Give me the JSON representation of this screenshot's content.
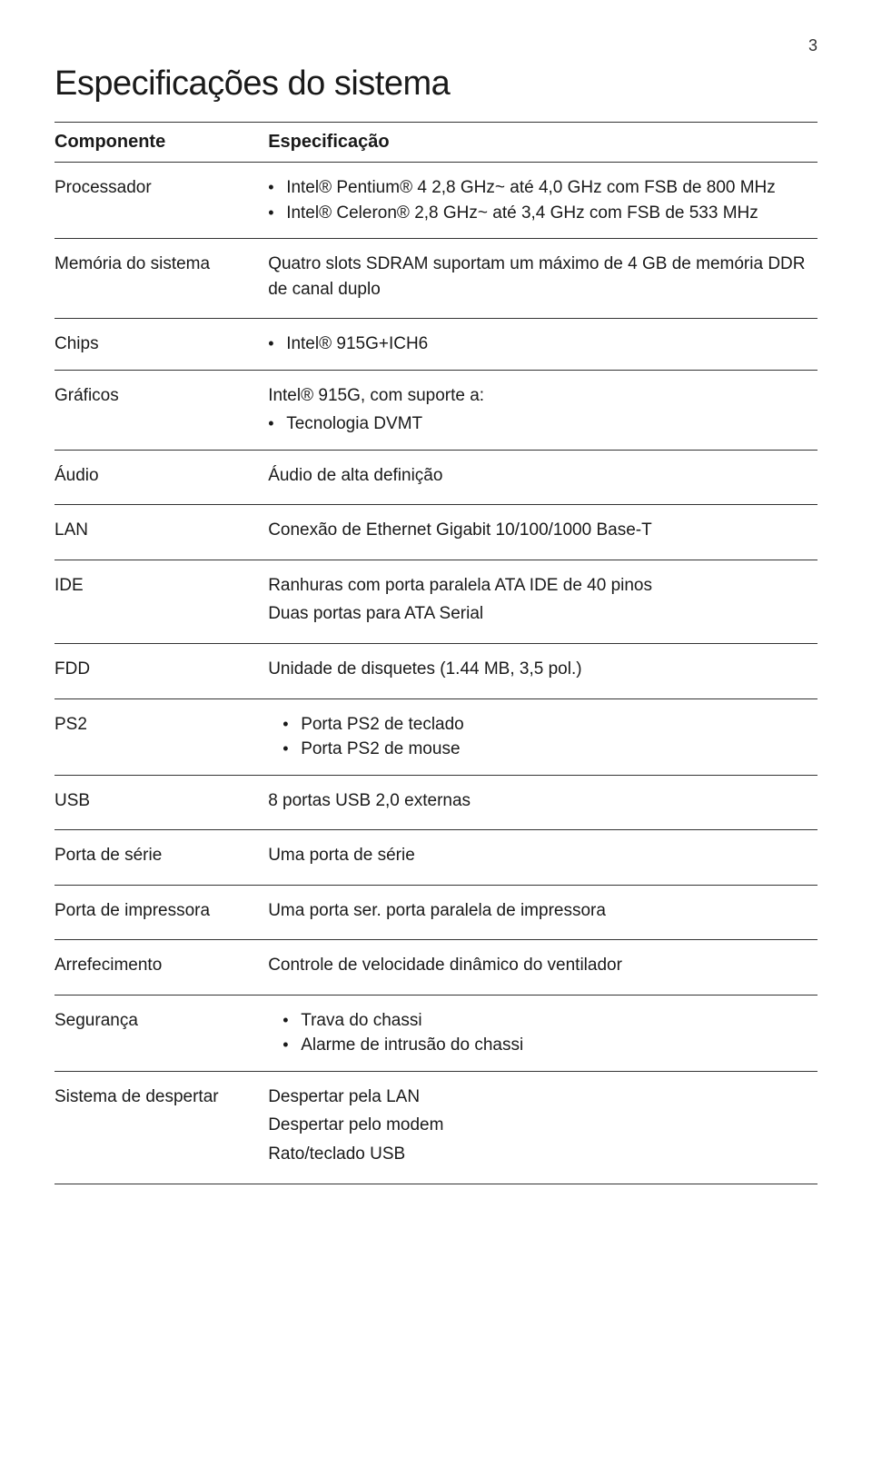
{
  "page_number": "3",
  "title": "Especificações do sistema",
  "colors": {
    "text": "#1a1a1a",
    "rule": "#333333",
    "background": "#ffffff"
  },
  "typography": {
    "title_fontsize": 38,
    "header_fontsize": 20,
    "body_fontsize": 19,
    "page_number_fontsize": 18,
    "line_height": 1.45
  },
  "table": {
    "headers": [
      "Componente",
      "Especificação"
    ],
    "rows": [
      {
        "component": "Processador",
        "spec": {
          "type": "bullets",
          "items": [
            "Intel® Pentium® 4 2,8 GHz~ até 4,0 GHz com FSB de 800 MHz",
            "Intel® Celeron® 2,8 GHz~ até 3,4 GHz com FSB de 533 MHz"
          ]
        }
      },
      {
        "component": "Memória do sistema",
        "spec": {
          "type": "plain",
          "text": "Quatro slots SDRAM suportam um máximo de 4 GB de memória DDR de canal duplo"
        }
      },
      {
        "component": "Chips",
        "spec": {
          "type": "bullets",
          "items": [
            "Intel® 915G+ICH6"
          ]
        }
      },
      {
        "component": "Gráficos",
        "spec": {
          "type": "plain_then_bullets",
          "text": "Intel® 915G, com suporte a:",
          "items": [
            "Tecnologia DVMT"
          ]
        }
      },
      {
        "component": "Áudio",
        "spec": {
          "type": "plain",
          "text": "Áudio de alta definição"
        }
      },
      {
        "component": "LAN",
        "spec": {
          "type": "plain",
          "text": "Conexão de Ethernet Gigabit 10/100/1000 Base-T"
        }
      },
      {
        "component": "IDE",
        "spec": {
          "type": "plain_multi",
          "lines": [
            "Ranhuras com porta paralela ATA IDE de 40 pinos",
            "Duas portas para ATA Serial"
          ]
        }
      },
      {
        "component": "FDD",
        "spec": {
          "type": "plain",
          "text": "Unidade de disquetes (1.44 MB, 3,5 pol.)"
        }
      },
      {
        "component": "PS2",
        "spec": {
          "type": "bullets_indent",
          "items": [
            "Porta PS2 de teclado",
            "Porta PS2 de mouse"
          ]
        }
      },
      {
        "component": "USB",
        "spec": {
          "type": "plain",
          "text": "8 portas USB 2,0 externas"
        }
      },
      {
        "component": "Porta de série",
        "spec": {
          "type": "plain",
          "text": "Uma porta de série"
        }
      },
      {
        "component": "Porta de impressora",
        "spec": {
          "type": "plain",
          "text": "Uma porta ser. porta paralela de impressora"
        }
      },
      {
        "component": "Arrefecimento",
        "spec": {
          "type": "plain",
          "text": "Controle de velocidade dinâmico do ventilador"
        }
      },
      {
        "component": "Segurança",
        "spec": {
          "type": "bullets_indent",
          "items": [
            "Trava do chassi",
            "Alarme de intrusão do chassi"
          ]
        }
      },
      {
        "component": "Sistema de despertar",
        "spec": {
          "type": "plain_multi",
          "lines": [
            "Despertar pela LAN",
            "Despertar pelo modem",
            "Rato/teclado USB"
          ]
        }
      }
    ]
  }
}
